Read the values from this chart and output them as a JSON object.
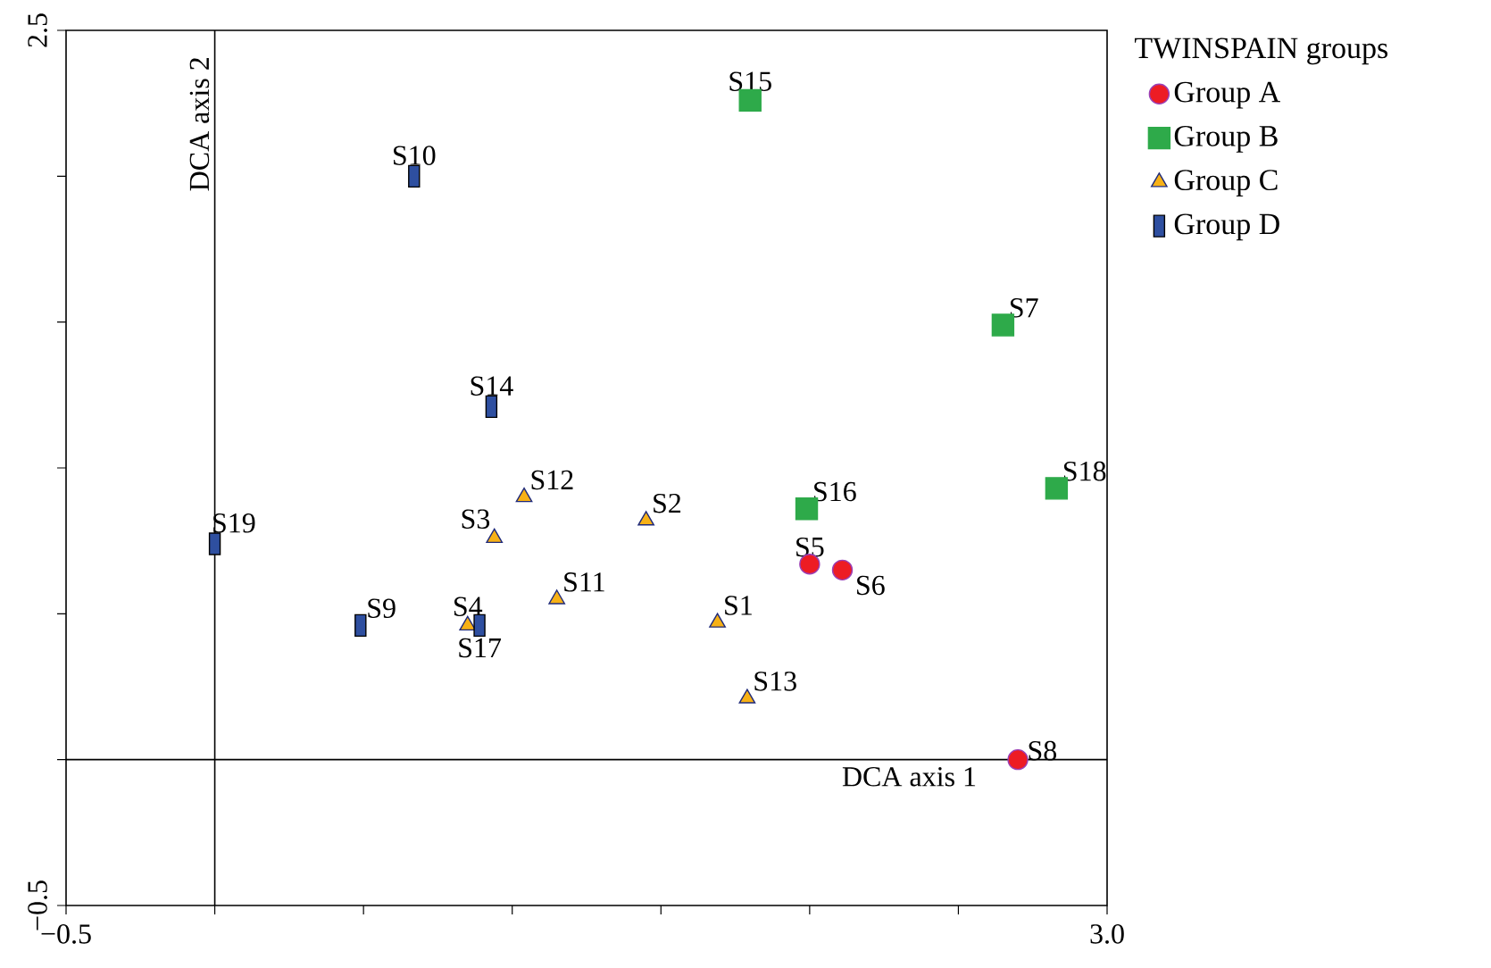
{
  "chart_data": {
    "type": "scatter",
    "xlim": [
      -0.5,
      3.0
    ],
    "ylim": [
      -0.5,
      2.5
    ],
    "xticks": [
      {
        "value": -0.5,
        "label": "−0.5"
      },
      {
        "value": 0,
        "label": null
      },
      {
        "value": 0.5,
        "label": null
      },
      {
        "value": 1.0,
        "label": null
      },
      {
        "value": 1.5,
        "label": null
      },
      {
        "value": 2.0,
        "label": null
      },
      {
        "value": 2.5,
        "label": null
      },
      {
        "value": 3.0,
        "label": "3.0"
      }
    ],
    "yticks": [
      {
        "value": -0.5,
        "label": "−0.5"
      },
      {
        "value": 0,
        "label": null
      },
      {
        "value": 0.5,
        "label": null
      },
      {
        "value": 1.0,
        "label": null
      },
      {
        "value": 1.5,
        "label": null
      },
      {
        "value": 2.0,
        "label": null
      },
      2.5
    ],
    "legend": "top right",
    "legend_title": "TWINSPAIN groups",
    "ref_lines": [
      {
        "axis": "x",
        "value": 0,
        "label": "DCA axis 2"
      },
      {
        "axis": "y",
        "value": 0,
        "label": "DCA axis 1"
      }
    ],
    "series": [
      {
        "name": "Group A",
        "color": "#ed1c24",
        "marker": "circle",
        "x": [
          2.0,
          2.11,
          2.7
        ],
        "values": [
          0.67,
          0.65,
          0.0
        ],
        "value_labels": [
          "S5",
          "S6",
          "S8"
        ]
      },
      {
        "name": "Group B",
        "color": "#2eaa4a",
        "marker": "square",
        "x": [
          1.8,
          2.65,
          1.99,
          2.83
        ],
        "values": [
          2.26,
          1.49,
          0.86,
          0.93
        ],
        "value_labels": [
          "S15",
          "S7",
          "S16",
          "S18"
        ]
      },
      {
        "name": "Group C",
        "color": "#f7b116",
        "marker": "triangle",
        "x": [
          1.04,
          0.94,
          1.45,
          1.15,
          0.85,
          1.69,
          1.79
        ],
        "values": [
          0.9,
          0.76,
          0.82,
          0.55,
          0.46,
          0.47,
          0.21
        ],
        "value_labels": [
          "S12",
          "S3",
          "S2",
          "S11",
          "S4",
          "S1",
          "S13"
        ]
      },
      {
        "name": "Group D",
        "color": "#2e4fa0",
        "marker": "square",
        "x": [
          0.67,
          0.93,
          0.0,
          0.49,
          0.89
        ],
        "values": [
          2.0,
          1.21,
          0.74,
          0.46,
          0.46
        ],
        "value_labels": [
          "S10",
          "S14",
          "S19",
          "S9",
          "S17"
        ]
      }
    ]
  }
}
